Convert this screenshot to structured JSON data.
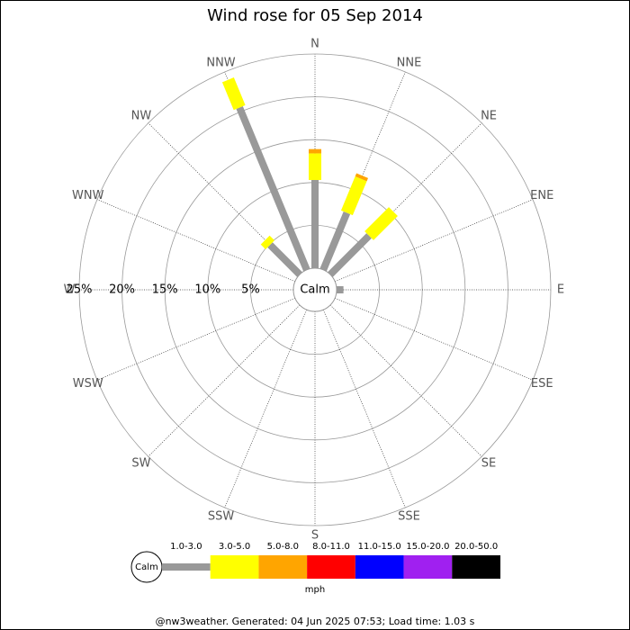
{
  "chart_data": {
    "type": "windrose",
    "title": "Wind rose for 05 Sep 2014",
    "directions": [
      "N",
      "NNE",
      "NE",
      "ENE",
      "E",
      "ESE",
      "SE",
      "SSE",
      "S",
      "SSW",
      "SW",
      "WSW",
      "W",
      "WNW",
      "NW",
      "NNW"
    ],
    "calm_label": "Calm",
    "rlim": [
      0,
      25
    ],
    "rticks": [
      {
        "value": 5,
        "label": "5%"
      },
      {
        "value": 10,
        "label": "10%"
      },
      {
        "value": 15,
        "label": "15%"
      },
      {
        "value": 20,
        "label": "20%"
      },
      {
        "value": 25,
        "label": "25%"
      }
    ],
    "series": [
      {
        "name": "1.0-3.0",
        "color": "#999999",
        "values": [
          10.3,
          7.2,
          6.4,
          0,
          0.8,
          0,
          0,
          0,
          0,
          0,
          0,
          0,
          0,
          0,
          4.9,
          20.5
        ]
      },
      {
        "name": "3.0-5.0",
        "color": "#ffff00",
        "values": [
          3.1,
          4.3,
          4.0,
          0,
          0,
          0,
          0,
          0,
          0,
          0,
          0,
          0,
          0,
          0,
          0.8,
          3.5
        ]
      },
      {
        "name": "5.0-8.0",
        "color": "#ffa500",
        "values": [
          0.5,
          0.4,
          0,
          0,
          0,
          0,
          0,
          0,
          0,
          0,
          0,
          0,
          0,
          0,
          0,
          0
        ]
      },
      {
        "name": "8.0-11.0",
        "color": "#ff0000",
        "values": [
          0,
          0,
          0,
          0,
          0,
          0,
          0,
          0,
          0,
          0,
          0,
          0,
          0,
          0,
          0,
          0
        ]
      },
      {
        "name": "11.0-15.0",
        "color": "#0000ff",
        "values": [
          0,
          0,
          0,
          0,
          0,
          0,
          0,
          0,
          0,
          0,
          0,
          0,
          0,
          0,
          0,
          0
        ]
      },
      {
        "name": "15.0-20.0",
        "color": "#a020f0",
        "values": [
          0,
          0,
          0,
          0,
          0,
          0,
          0,
          0,
          0,
          0,
          0,
          0,
          0,
          0,
          0,
          0
        ]
      },
      {
        "name": "20.0-50.0",
        "color": "#000000",
        "values": [
          0,
          0,
          0,
          0,
          0,
          0,
          0,
          0,
          0,
          0,
          0,
          0,
          0,
          0,
          0,
          0
        ]
      }
    ],
    "legend_unit": "mph",
    "footer": "@nw3weather. Generated: 04 Jun 2025 07:53; Load time: 1.03 s"
  }
}
